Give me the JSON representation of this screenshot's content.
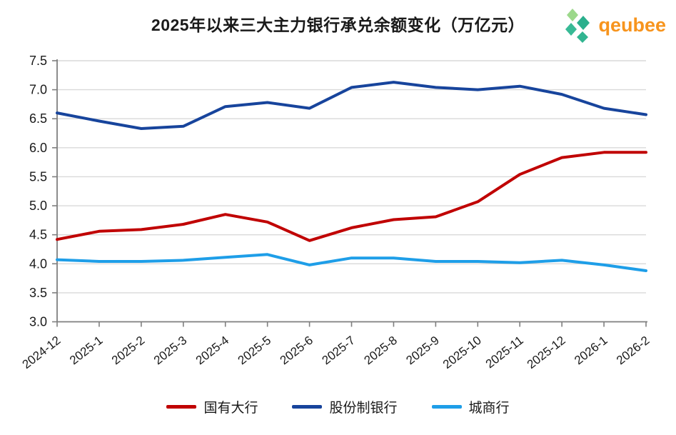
{
  "page": {
    "background": "#ffffff"
  },
  "header": {
    "title": "2025年以来三大主力银行承兑余额变化（万亿元）",
    "logo_text": "qeubee",
    "logo_text_color": "#F7941D",
    "logo_icon": "hexagon-cubes-icon",
    "logo_icon_colors": [
      "#9CD88B",
      "#38BA96",
      "#2BAF8D",
      "#31B591"
    ]
  },
  "chart_data": {
    "type": "line",
    "title": "2025年以来三大主力银行承兑余额变化（万亿元）",
    "categories": [
      "2024-12",
      "2025-1",
      "2025-2",
      "2025-3",
      "2025-4",
      "2025-5",
      "2025-6",
      "2025-7",
      "2025-8",
      "2025-9",
      "2025-10",
      "2025-11",
      "2025-12",
      "2026-1",
      "2026-2"
    ],
    "series": [
      {
        "name": "国有大行",
        "color": "#C00000",
        "values": [
          4.42,
          4.56,
          4.59,
          4.68,
          4.85,
          4.72,
          4.4,
          4.62,
          4.76,
          4.81,
          5.07,
          5.54,
          5.83,
          5.92,
          5.92
        ]
      },
      {
        "name": "股份制银行",
        "color": "#17449C",
        "values": [
          6.6,
          6.46,
          6.33,
          6.37,
          6.71,
          6.78,
          6.68,
          7.04,
          7.13,
          7.04,
          7.0,
          7.06,
          6.92,
          6.68,
          6.57
        ]
      },
      {
        "name": "城商行",
        "color": "#1E9EE8",
        "values": [
          4.07,
          4.04,
          4.04,
          4.06,
          4.11,
          4.16,
          3.98,
          4.1,
          4.1,
          4.04,
          4.04,
          4.02,
          4.06,
          3.98,
          3.88
        ]
      }
    ],
    "xlabel": "",
    "ylabel": "",
    "ylim": [
      3.0,
      7.5
    ],
    "ytick_step": 0.5,
    "grid": "horizontal",
    "gridline_color": "#D9D9D9",
    "axis_color": "#7F7F7F",
    "tick_label_color": "#1a1a1a",
    "x_tick_rotation_deg": -38,
    "legend_position": "bottom"
  }
}
